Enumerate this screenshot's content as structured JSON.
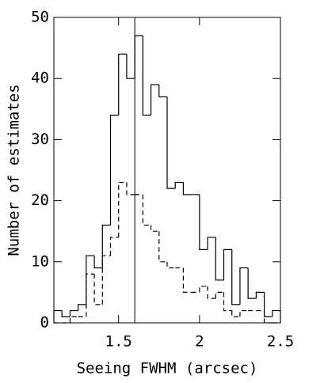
{
  "chart_data": {
    "type": "histogram",
    "xlabel": "Seeing FWHM (arcsec)",
    "ylabel": "Number of estimates",
    "bins": [
      1.1,
      1.15,
      1.2,
      1.25,
      1.3,
      1.35,
      1.4,
      1.45,
      1.5,
      1.55,
      1.6,
      1.65,
      1.7,
      1.75,
      1.8,
      1.85,
      1.9,
      1.95,
      2.0,
      2.05,
      2.1,
      2.15,
      2.2,
      2.25,
      2.3,
      2.35,
      2.4,
      2.45,
      2.5
    ],
    "series": [
      {
        "color": "#000000",
        "dashed": false,
        "values": [
          2,
          1,
          2,
          3,
          11,
          9,
          16,
          34,
          44,
          40,
          47,
          34,
          39,
          37,
          22,
          23,
          21,
          21,
          12,
          14,
          7,
          12,
          3,
          9,
          4,
          5,
          1,
          2
        ]
      },
      {
        "color": "#000000",
        "dashed": true,
        "values": [
          0,
          0,
          1,
          1,
          8,
          3,
          11,
          14,
          23,
          21,
          21,
          16,
          15,
          10,
          9,
          9,
          5,
          5,
          6,
          4,
          5,
          2,
          1,
          2,
          2,
          2,
          0,
          0
        ]
      }
    ],
    "vline": 1.6,
    "xlim": [
      1.1,
      2.5
    ],
    "xticks": [
      1.5,
      2,
      2.5
    ],
    "ylim": [
      0,
      50
    ],
    "yticks": [
      0,
      10,
      20,
      30,
      40,
      50
    ]
  }
}
